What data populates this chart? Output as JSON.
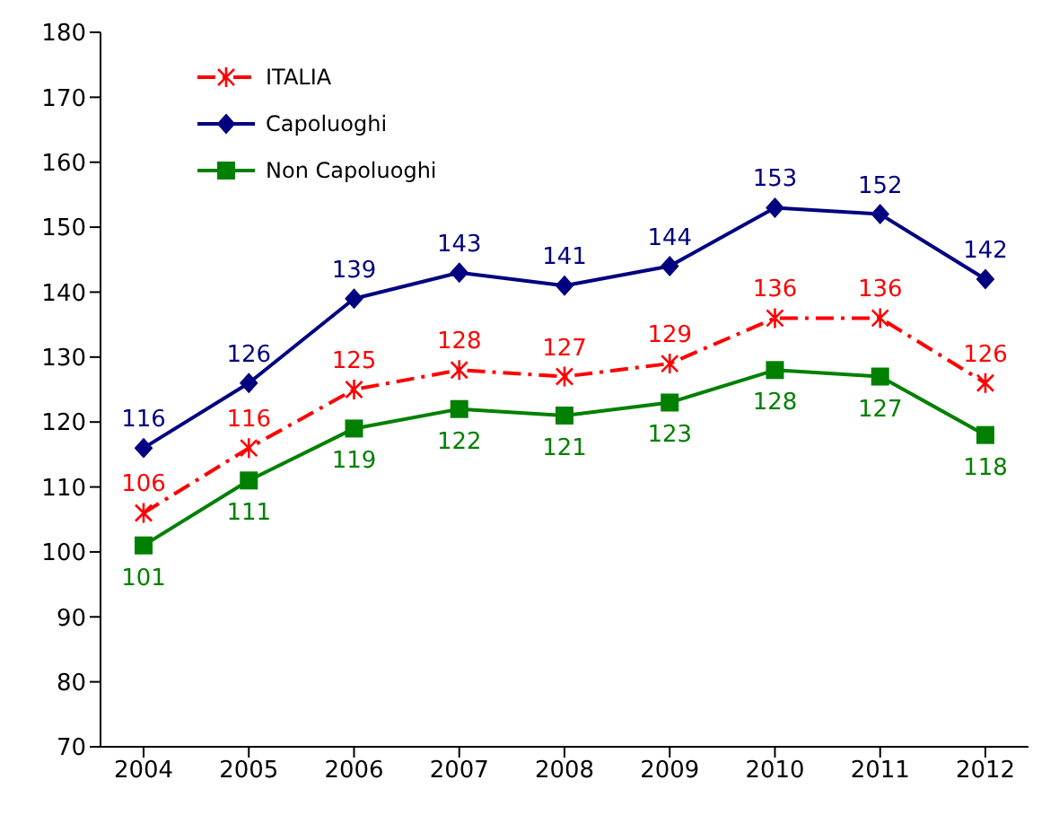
{
  "chart_data": {
    "type": "line",
    "categories": [
      "2004",
      "2005",
      "2006",
      "2007",
      "2008",
      "2009",
      "2010",
      "2011",
      "2012"
    ],
    "series": [
      {
        "name": "ITALIA",
        "color": "#ff0000",
        "values": [
          106,
          116,
          125,
          128,
          127,
          129,
          136,
          136,
          126
        ],
        "marker": "cross",
        "line_style": "dashed"
      },
      {
        "name": "Capoluoghi",
        "color": "#000080",
        "values": [
          116,
          126,
          139,
          143,
          141,
          144,
          153,
          152,
          142
        ],
        "marker": "diamond",
        "line_style": "solid"
      },
      {
        "name": "Non Capoluoghi",
        "color": "#008000",
        "values": [
          101,
          111,
          119,
          122,
          121,
          123,
          128,
          127,
          118
        ],
        "marker": "square",
        "line_style": "solid"
      }
    ],
    "ylim": [
      70,
      180
    ],
    "yticks": [
      70,
      80,
      90,
      100,
      110,
      120,
      130,
      140,
      150,
      160,
      170,
      180
    ],
    "grid": false,
    "legend": "top left",
    "data_labels": true
  }
}
